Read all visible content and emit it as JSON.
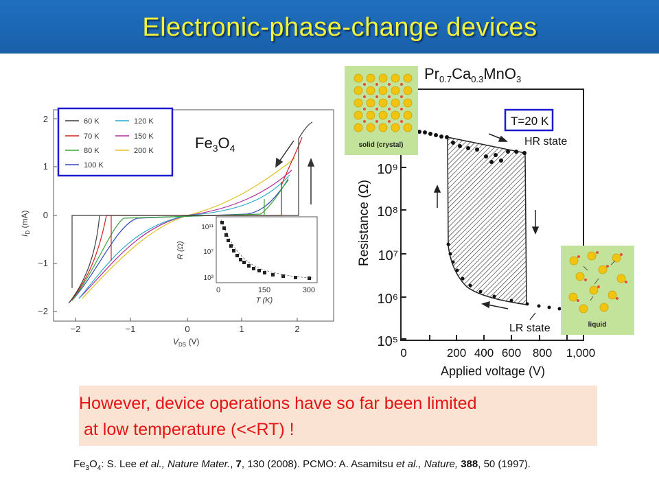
{
  "slide": {
    "title": "Electronic-phase-change devices",
    "colors": {
      "title_bar": "#1c66b3",
      "title_text": "#f2f23c",
      "caption_bg": "#fbe3d4",
      "caption_text": "#e51414",
      "legend_frame": "#1a1acc"
    }
  },
  "left_figure": {
    "label_main": "Fe",
    "label_sub1": "3",
    "label_mid": "O",
    "label_sub2": "4",
    "xaxis": {
      "label_main": "V",
      "label_sub": "DS",
      "unit": " (V)",
      "ticks": [
        "−2",
        "−1",
        "0",
        "1",
        "2"
      ]
    },
    "yaxis": {
      "label_main": "I",
      "label_sub": "D",
      "unit": " (mA)",
      "ticks": [
        "2",
        "1",
        "0",
        "−1",
        "−2"
      ]
    },
    "legend": [
      {
        "label": "60 K",
        "color": "#3b3b3b"
      },
      {
        "label": "70 K",
        "color": "#d42020"
      },
      {
        "label": "80 K",
        "color": "#3aa53a"
      },
      {
        "label": "100 K",
        "color": "#2d48b8"
      },
      {
        "label": "120 K",
        "color": "#2aa8c8"
      },
      {
        "label": "150 K",
        "color": "#b02a9a"
      },
      {
        "label": "200 K",
        "color": "#e0c020"
      }
    ],
    "inset": {
      "xlabel": "T (K)",
      "ylabel": "R (Ω)",
      "xticks": [
        "0",
        "150",
        "300"
      ],
      "yticks": [
        "10¹¹",
        "10⁷",
        "10³"
      ]
    }
  },
  "right_figure": {
    "formula": {
      "a": "Pr",
      "a_sub": "0.7",
      "b": "Ca",
      "b_sub": "0.3",
      "c": "MnO",
      "c_sub": "3"
    },
    "temperature_box": "T=20 K",
    "hr_label": "HR state",
    "lr_label": "LR state",
    "xaxis": {
      "label": "Applied voltage (V)",
      "ticks": [
        "0",
        "200",
        "400",
        "600",
        "800",
        "1,000"
      ]
    },
    "yaxis": {
      "label": "Resistance (Ω)",
      "ticks": [
        "10⁹",
        "10⁸",
        "10⁷",
        "10⁶",
        "10⁵"
      ]
    },
    "solid_panel_label": "solid (crystal)",
    "liquid_panel_label": "liquid"
  },
  "caption": {
    "line1": "However, device operations have so far been limited",
    "line2": "at low temperature (<<RT) !"
  },
  "reference": {
    "fe_main": "Fe",
    "fe_sub1": "3",
    "fe_mid": "O",
    "fe_sub2": "4",
    "part1": ": S. Lee ",
    "etal1": "et al., Nature Mater.",
    "part2": ", ",
    "vol1": "7",
    "part3": ", 130 (2008).  PCMO: A. Asamitsu ",
    "etal2": "et al., Nature,",
    "part4": " ",
    "vol2": "388",
    "part5": ", 50 (1997)."
  }
}
